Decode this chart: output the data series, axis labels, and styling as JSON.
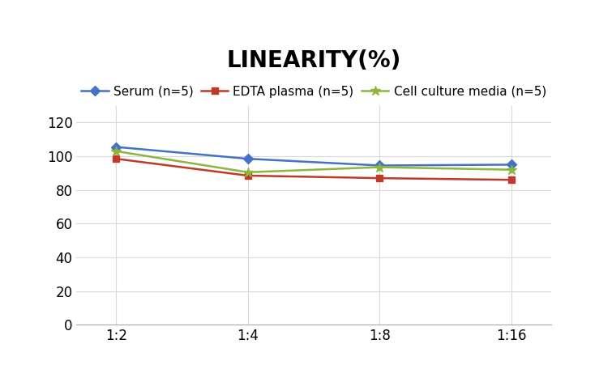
{
  "title": "LINEARITY(%)",
  "x_labels": [
    "1:2",
    "1:4",
    "1:8",
    "1:16"
  ],
  "series": [
    {
      "label": "Serum (n=5)",
      "color": "#4472C4",
      "marker": "D",
      "values": [
        105.5,
        98.5,
        94.5,
        95.0
      ]
    },
    {
      "label": "EDTA plasma (n=5)",
      "color": "#C0392B",
      "marker": "s",
      "values": [
        98.5,
        88.5,
        87.0,
        86.0
      ]
    },
    {
      "label": "Cell culture media (n=5)",
      "color": "#8DB63C",
      "marker": "*",
      "values": [
        103.0,
        90.5,
        93.5,
        92.0
      ]
    }
  ],
  "ylim": [
    0,
    130
  ],
  "yticks": [
    0,
    20,
    40,
    60,
    80,
    100,
    120
  ],
  "background_color": "#FFFFFF",
  "grid_color": "#D9D9D9",
  "title_fontsize": 20,
  "legend_fontsize": 11,
  "tick_fontsize": 12
}
